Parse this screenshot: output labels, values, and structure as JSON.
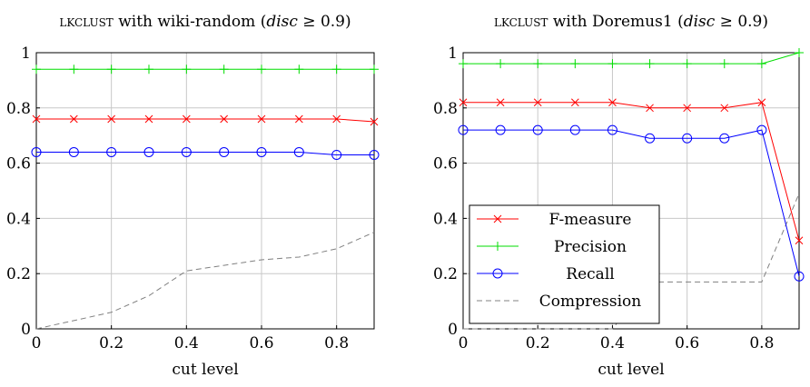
{
  "chart_data": [
    {
      "type": "line",
      "title_prefix": "lkclust",
      "title_mid": " with wiki-random (",
      "title_cond_var": "disc",
      "title_cond_rest": " ≥ 0.9)",
      "xlabel": "cut level",
      "ylabel": "",
      "xlim": [
        0,
        0.9
      ],
      "ylim": [
        0,
        1
      ],
      "xticks": [
        0,
        0.2,
        0.4,
        0.6,
        0.8
      ],
      "xtick_labels": [
        "0",
        "0.2",
        "0.4",
        "0.6",
        "0.8"
      ],
      "yticks": [
        0,
        0.2,
        0.4,
        0.6,
        0.8,
        1
      ],
      "ytick_labels": [
        "0",
        "0.2",
        "0.4",
        "0.6",
        "0.8",
        "1"
      ],
      "grid": true,
      "legend": "none",
      "x": [
        0,
        0.1,
        0.2,
        0.3,
        0.4,
        0.5,
        0.6,
        0.7,
        0.8,
        0.9
      ],
      "series": [
        {
          "key": "fmeasure",
          "color": "#ff0000",
          "marker": "x",
          "dash": "",
          "values": [
            0.76,
            0.76,
            0.76,
            0.76,
            0.76,
            0.76,
            0.76,
            0.76,
            0.76,
            0.75
          ]
        },
        {
          "key": "precision",
          "color": "#00dd00",
          "marker": "+",
          "dash": "",
          "values": [
            0.94,
            0.94,
            0.94,
            0.94,
            0.94,
            0.94,
            0.94,
            0.94,
            0.94,
            0.94
          ]
        },
        {
          "key": "recall",
          "color": "#0000ff",
          "marker": "o",
          "dash": "",
          "values": [
            0.64,
            0.64,
            0.64,
            0.64,
            0.64,
            0.64,
            0.64,
            0.64,
            0.63,
            0.63
          ]
        },
        {
          "key": "compression",
          "color": "#808080",
          "marker": "none",
          "dash": "6 4",
          "values": [
            0.0,
            0.03,
            0.06,
            0.12,
            0.21,
            0.23,
            0.25,
            0.26,
            0.29,
            0.35
          ]
        }
      ]
    },
    {
      "type": "line",
      "title_prefix": "lkclust",
      "title_mid": " with Doremus1 (",
      "title_cond_var": "disc",
      "title_cond_rest": " ≥ 0.9)",
      "xlabel": "cut level",
      "ylabel": "",
      "xlim": [
        0,
        0.9
      ],
      "ylim": [
        0,
        1
      ],
      "xticks": [
        0,
        0.2,
        0.4,
        0.6,
        0.8
      ],
      "xtick_labels": [
        "0",
        "0.2",
        "0.4",
        "0.6",
        "0.8"
      ],
      "yticks": [
        0,
        0.2,
        0.4,
        0.6,
        0.8,
        1
      ],
      "ytick_labels": [
        "0",
        "0.2",
        "0.4",
        "0.6",
        "0.8",
        "1"
      ],
      "grid": true,
      "legend": "bottom-left",
      "x": [
        0,
        0.1,
        0.2,
        0.3,
        0.4,
        0.5,
        0.6,
        0.7,
        0.8,
        0.9
      ],
      "series": [
        {
          "key": "fmeasure",
          "name": "F-measure",
          "color": "#ff0000",
          "marker": "x",
          "dash": "",
          "values": [
            0.82,
            0.82,
            0.82,
            0.82,
            0.82,
            0.8,
            0.8,
            0.8,
            0.82,
            0.32
          ]
        },
        {
          "key": "precision",
          "name": "Precision",
          "color": "#00dd00",
          "marker": "+",
          "dash": "",
          "values": [
            0.96,
            0.96,
            0.96,
            0.96,
            0.96,
            0.96,
            0.96,
            0.96,
            0.96,
            1.0
          ]
        },
        {
          "key": "recall",
          "name": "Recall",
          "color": "#0000ff",
          "marker": "o",
          "dash": "",
          "values": [
            0.72,
            0.72,
            0.72,
            0.72,
            0.72,
            0.69,
            0.69,
            0.69,
            0.72,
            0.19
          ]
        },
        {
          "key": "compression",
          "name": "Compression",
          "color": "#808080",
          "marker": "none",
          "dash": "6 4",
          "values": [
            0.0,
            0.0,
            0.0,
            0.0,
            0.0,
            0.17,
            0.17,
            0.17,
            0.17,
            0.49
          ]
        }
      ]
    }
  ]
}
